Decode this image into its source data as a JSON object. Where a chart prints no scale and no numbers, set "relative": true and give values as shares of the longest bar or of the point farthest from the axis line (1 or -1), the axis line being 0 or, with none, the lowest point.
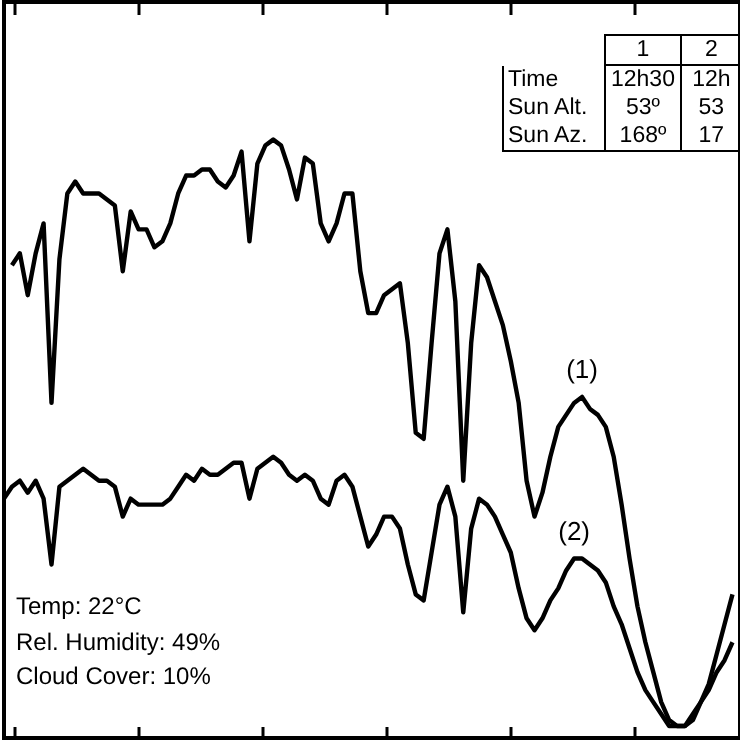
{
  "chart_data": {
    "type": "line",
    "relative": true,
    "tick_labels": false,
    "grid": false,
    "legend": false,
    "line_style": "solid",
    "marker": "none",
    "categories": [
      null,
      null,
      null,
      null,
      null,
      null,
      null,
      null,
      null,
      null,
      null,
      null,
      null,
      null,
      null,
      null,
      null,
      null,
      null,
      null,
      null,
      null,
      null,
      null,
      null,
      null,
      null,
      null,
      null,
      null,
      null,
      null,
      null,
      null,
      null,
      null,
      null,
      null,
      null,
      null,
      null,
      null,
      null,
      null,
      null,
      null,
      null,
      null,
      null,
      null,
      null,
      null,
      null,
      null,
      null,
      null,
      null,
      null,
      null,
      null,
      null,
      null,
      null,
      null,
      null,
      null,
      null,
      null,
      null,
      null,
      null,
      null,
      null,
      null,
      null,
      null,
      null,
      null,
      null,
      null,
      null,
      null,
      null,
      null,
      null,
      null,
      null,
      null,
      null,
      null,
      null,
      null,
      null
    ],
    "series": [
      {
        "name": "(1)",
        "color": "#000000",
        "values": [
          null,
          0.79,
          0.81,
          0.74,
          0.81,
          0.86,
          0.56,
          0.8,
          0.91,
          0.93,
          0.91,
          0.91,
          0.91,
          0.9,
          0.89,
          0.78,
          0.88,
          0.85,
          0.85,
          0.82,
          0.83,
          0.86,
          0.91,
          0.94,
          0.94,
          0.95,
          0.95,
          0.93,
          0.92,
          0.94,
          0.98,
          0.83,
          0.96,
          0.99,
          1.0,
          0.99,
          0.95,
          0.9,
          0.97,
          0.96,
          0.86,
          0.83,
          0.86,
          0.91,
          0.91,
          0.78,
          0.71,
          0.71,
          0.74,
          0.75,
          0.76,
          0.66,
          0.51,
          0.5,
          0.66,
          0.81,
          0.85,
          0.73,
          0.43,
          0.66,
          0.79,
          0.77,
          0.73,
          0.69,
          0.63,
          0.56,
          0.43,
          0.37,
          0.41,
          0.47,
          0.52,
          0.54,
          0.56,
          0.57,
          0.55,
          0.54,
          0.52,
          0.47,
          0.39,
          0.3,
          0.22,
          0.16,
          0.11,
          0.06,
          0.03,
          0.02,
          0.02,
          0.03,
          0.06,
          0.09,
          0.14,
          0.19,
          0.24
        ]
      },
      {
        "name": "(2)",
        "color": "#000000",
        "values": [
          0.4,
          0.42,
          0.43,
          0.41,
          0.43,
          0.4,
          0.29,
          0.42,
          0.43,
          0.44,
          0.45,
          0.44,
          0.43,
          0.43,
          0.42,
          0.37,
          0.4,
          0.39,
          0.39,
          0.39,
          0.39,
          0.4,
          0.42,
          0.44,
          0.43,
          0.45,
          0.44,
          0.44,
          0.45,
          0.46,
          0.46,
          0.4,
          0.45,
          0.46,
          0.47,
          0.46,
          0.44,
          0.43,
          0.44,
          0.43,
          0.4,
          0.39,
          0.43,
          0.44,
          0.42,
          0.37,
          0.32,
          0.34,
          0.37,
          0.37,
          0.35,
          0.29,
          0.24,
          0.23,
          0.31,
          0.39,
          0.42,
          0.37,
          0.21,
          0.35,
          0.4,
          0.39,
          0.37,
          0.34,
          0.31,
          0.25,
          0.2,
          0.18,
          0.2,
          0.23,
          0.25,
          0.28,
          0.3,
          0.3,
          0.29,
          0.28,
          0.26,
          0.22,
          0.19,
          0.15,
          0.11,
          0.08,
          0.06,
          0.04,
          0.02,
          0.02,
          0.02,
          0.04,
          0.06,
          0.08,
          0.11,
          0.13,
          0.16
        ]
      }
    ],
    "annotations": [
      "Temp: 22°C",
      "Rel. Humidity: 49%",
      "Cloud Cover: 10%",
      "1",
      "2",
      "Time",
      "12h30",
      "12h",
      "Sun Alt.",
      "53º",
      "53",
      "Sun Az.",
      "168º",
      "17"
    ]
  }
}
